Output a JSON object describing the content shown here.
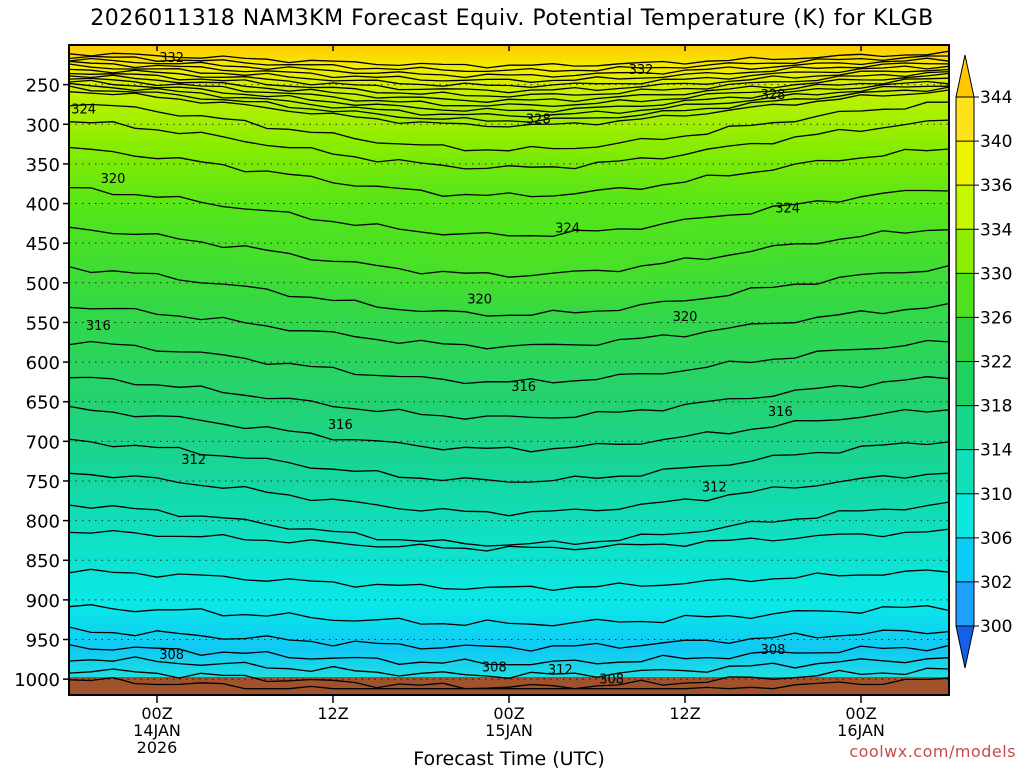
{
  "chart_data": {
    "type": "heatmap",
    "title": "2026011318 NAM3KM Forecast Equiv. Potential Temperature (K) for KLGB",
    "xlabel": "Forecast Time (UTC)",
    "ylabel": "",
    "x_range_hours": [
      -6,
      54
    ],
    "x_ticks": [
      {
        "hour": 0,
        "lines": [
          "00Z",
          "14JAN",
          "2026"
        ]
      },
      {
        "hour": 12,
        "lines": [
          "12Z"
        ]
      },
      {
        "hour": 24,
        "lines": [
          "00Z",
          "15JAN"
        ]
      },
      {
        "hour": 36,
        "lines": [
          "12Z"
        ]
      },
      {
        "hour": 48,
        "lines": [
          "00Z",
          "16JAN"
        ]
      }
    ],
    "y_ticks_hpa": [
      250,
      300,
      350,
      400,
      450,
      500,
      550,
      600,
      650,
      700,
      750,
      800,
      850,
      900,
      950,
      1000
    ],
    "y_range_hpa": [
      200,
      1020
    ],
    "colorbar": {
      "values": [
        300,
        302,
        306,
        310,
        314,
        318,
        322,
        326,
        330,
        334,
        336,
        340,
        344
      ],
      "colors": [
        "#1560e8",
        "#1ea0ff",
        "#0ccbf5",
        "#0ce8e0",
        "#10e0b8",
        "#14d88c",
        "#1ed260",
        "#2ed23c",
        "#4fe01e",
        "#8ef000",
        "#c4f800",
        "#eef400",
        "#ffe21a",
        "#ffc800"
      ]
    },
    "contour_labels": [
      {
        "value": "332",
        "hour": 1,
        "hpa": 215
      },
      {
        "value": "332",
        "hour": 33,
        "hpa": 230
      },
      {
        "value": "328",
        "hour": 42,
        "hpa": 262
      },
      {
        "value": "324",
        "hour": -5,
        "hpa": 280
      },
      {
        "value": "328",
        "hour": 26,
        "hpa": 293
      },
      {
        "value": "320",
        "hour": -3,
        "hpa": 368
      },
      {
        "value": "324",
        "hour": 28,
        "hpa": 430
      },
      {
        "value": "324",
        "hour": 43,
        "hpa": 405
      },
      {
        "value": "320",
        "hour": 22,
        "hpa": 520
      },
      {
        "value": "320",
        "hour": 36,
        "hpa": 542
      },
      {
        "value": "316",
        "hour": -4,
        "hpa": 553
      },
      {
        "value": "316",
        "hour": 25,
        "hpa": 630
      },
      {
        "value": "316",
        "hour": 12.5,
        "hpa": 678
      },
      {
        "value": "316",
        "hour": 42.5,
        "hpa": 662
      },
      {
        "value": "312",
        "hour": 2.5,
        "hpa": 722
      },
      {
        "value": "312",
        "hour": 38,
        "hpa": 757
      },
      {
        "value": "308",
        "hour": 1,
        "hpa": 968
      },
      {
        "value": "308",
        "hour": 42,
        "hpa": 962
      },
      {
        "value": "308",
        "hour": 23,
        "hpa": 984
      },
      {
        "value": "312",
        "hour": 27.5,
        "hpa": 987
      },
      {
        "value": "308",
        "hour": 31,
        "hpa": 999
      }
    ]
  },
  "watermark": "coolwx.com/models",
  "colors": {
    "ground": "#a0522d",
    "contour": "#000000",
    "watermark": "#c84a4a"
  }
}
